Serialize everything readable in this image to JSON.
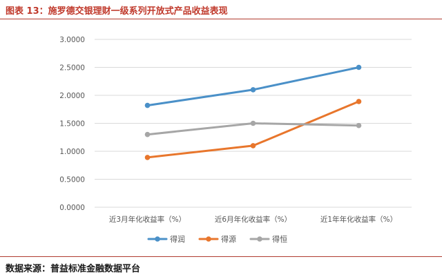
{
  "figure": {
    "title": "图表 13：施罗德交银理财一级系列开放式产品收益表现",
    "source": "数据来源：普益标准金融数据平台"
  },
  "colors": {
    "title": "#c0392b",
    "rule": "#b03a2e",
    "grid": "#d9d9d9",
    "text": "#555555"
  },
  "chart_data": {
    "type": "line",
    "categories": [
      "近3月年化收益率（%）",
      "近6月年化收益率（%）",
      "近1年年化收益率（%）"
    ],
    "series": [
      {
        "name": "得润",
        "color": "#4a90c8",
        "values": [
          1.82,
          2.1,
          2.5
        ]
      },
      {
        "name": "得源",
        "color": "#e8762c",
        "values": [
          0.89,
          1.1,
          1.89
        ]
      },
      {
        "name": "得恒",
        "color": "#a6a6a6",
        "values": [
          1.3,
          1.5,
          1.46
        ]
      }
    ],
    "ylim": [
      0,
      3
    ],
    "yticks": [
      "0.0000",
      "0.5000",
      "1.0000",
      "1.5000",
      "2.0000",
      "2.5000",
      "3.0000"
    ],
    "grid": true,
    "legend_position": "bottom"
  }
}
